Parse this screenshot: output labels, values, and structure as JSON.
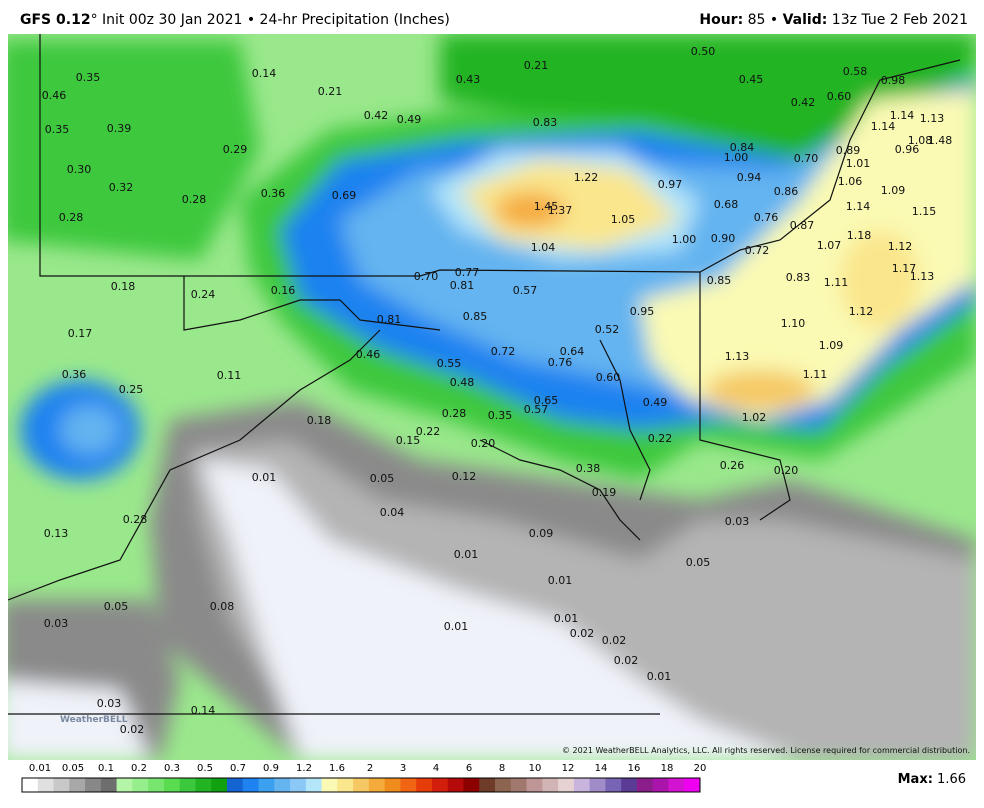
{
  "header": {
    "model": "GFS 0.12",
    "degree": "°",
    "description": " Init 00z 30 Jan 2021 • 24-hr Precipitation (Inches)",
    "hour_label": "Hour:",
    "hour_value": " 85 • ",
    "valid_label": "Valid:",
    "valid_value": " 13z Tue 2 Feb 2021"
  },
  "map": {
    "labels": [
      "0.35",
      "0.14",
      "0.21",
      "0.43",
      "0.21",
      "0.50",
      "0.45",
      "0.58",
      "0.98",
      "0.46",
      "0.39",
      "0.42",
      "0.49",
      "0.83",
      "0.42",
      "0.60",
      "1.14",
      "1.13",
      "1.14",
      "0.35",
      "0.29",
      "0.84",
      "1.00",
      "0.70",
      "0.89",
      "1.01",
      "0.96",
      "1.08",
      "1.48",
      "0.30",
      "1.22",
      "0.97",
      "0.94",
      "1.06",
      "1.09",
      "0.32",
      "0.36",
      "0.69",
      "1.45",
      "1.37",
      "0.86",
      "0.28",
      "0.68",
      "1.14",
      "1.15",
      "0.28",
      "1.05",
      "0.76",
      "0.87",
      "1.04",
      "1.00",
      "0.90",
      "0.72",
      "1.07",
      "1.18",
      "1.12",
      "0.70",
      "0.77",
      "0.85",
      "0.83",
      "1.17",
      "1.13",
      "0.18",
      "0.24",
      "0.16",
      "0.81",
      "0.57",
      "1.11",
      "0.81",
      "0.85",
      "0.52",
      "0.95",
      "1.12",
      "0.17",
      "0.72",
      "0.64",
      "1.10",
      "1.09",
      "0.46",
      "0.55",
      "0.76",
      "1.13",
      "0.36",
      "0.11",
      "0.48",
      "0.60",
      "1.11",
      "0.25",
      "0.65",
      "0.49",
      "0.28",
      "0.35",
      "0.57",
      "1.02",
      "0.18",
      "0.22",
      "0.15",
      "0.20",
      "0.22",
      "0.26",
      "0.20",
      "0.38",
      "0.01",
      "0.05",
      "0.12",
      "0.19",
      "0.04",
      "0.28",
      "0.09",
      "0.03",
      "0.13",
      "0.01",
      "0.05",
      "0.01",
      "0.05",
      "0.08",
      "0.03",
      "0.01",
      "0.01",
      "0.02",
      "0.02",
      "0.02",
      "0.01",
      "0.03",
      "0.14",
      "0.02"
    ],
    "logo": "WeatherBELL",
    "copyright": "© 2021 WeatherBELL Analytics, LLC. All rights reserved. License required for commercial distribution."
  },
  "colorbar": {
    "ticks": [
      "0.01",
      "0.05",
      "0.1",
      "0.2",
      "0.3",
      "0.5",
      "0.7",
      "0.9",
      "1.2",
      "1.6",
      "2",
      "3",
      "4",
      "6",
      "8",
      "10",
      "12",
      "14",
      "16",
      "18",
      "20"
    ],
    "colors": [
      "#ffffff",
      "#e0e0e0",
      "#c8c8c8",
      "#a8a8a8",
      "#888888",
      "#6e6e6e",
      "#b4f5a8",
      "#96ee8c",
      "#78e66e",
      "#5adc50",
      "#3cc83c",
      "#22b422",
      "#10a010",
      "#1464d2",
      "#1e82f0",
      "#3ca0f0",
      "#64b4f0",
      "#8cc8f5",
      "#b4e6fa",
      "#fafab4",
      "#fae68c",
      "#f5c864",
      "#f5aa3c",
      "#f08c1e",
      "#f06414",
      "#e63c0a",
      "#d21e0a",
      "#b40a0a",
      "#8c0000",
      "#6e3c28",
      "#8c6450",
      "#a0786e",
      "#be9696",
      "#d2b4b4",
      "#e6d2d2",
      "#c8b4dc",
      "#a08cc8",
      "#7864b4",
      "#5a3c96",
      "#8c1e8c",
      "#aa14aa",
      "#d214d2",
      "#f000f0"
    ]
  },
  "footer": {
    "max_label": "Max:",
    "max_value": " 1.66"
  }
}
